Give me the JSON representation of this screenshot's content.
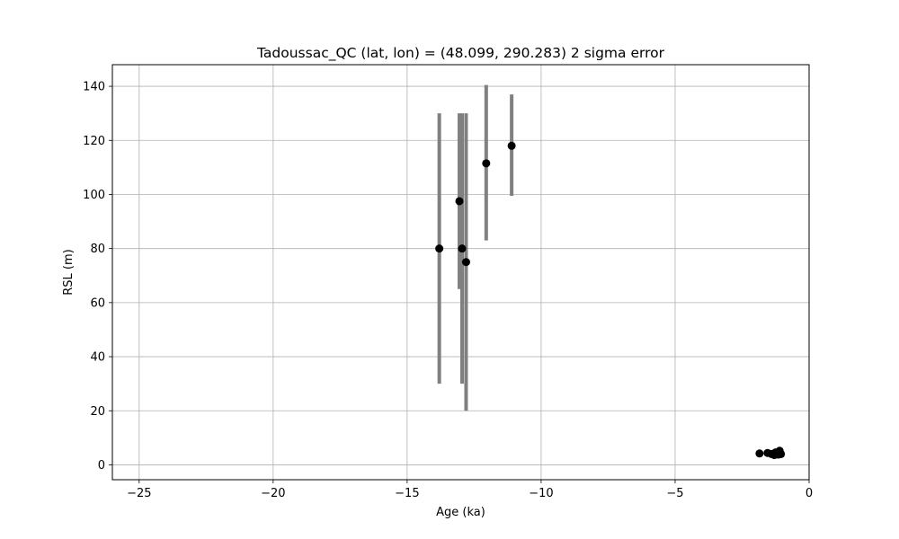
{
  "chart_data": {
    "type": "scatter",
    "title": "Tadoussac_QC (lat, lon) = (48.099, 290.283)  2 sigma error",
    "xlabel": "Age (ka)",
    "ylabel": "RSL (m)",
    "xlim": [
      -26,
      0
    ],
    "ylim": [
      -5.5,
      148
    ],
    "xticks": [
      -25,
      -20,
      -15,
      -10,
      -5,
      0
    ],
    "xtick_labels": [
      "−25",
      "−20",
      "−15",
      "−10",
      "−5",
      "0"
    ],
    "yticks": [
      0,
      20,
      40,
      60,
      80,
      100,
      120,
      140
    ],
    "ytick_labels": [
      "0",
      "20",
      "40",
      "60",
      "80",
      "100",
      "120",
      "140"
    ],
    "grid": true,
    "error_bar_color": "#808080",
    "marker_color": "#000000",
    "series": [
      {
        "points": [
          {
            "x": -13.8,
            "y": 80,
            "ylo": 30,
            "yhi": 130
          },
          {
            "x": -13.05,
            "y": 97.5,
            "ylo": 65,
            "yhi": 130
          },
          {
            "x": -12.95,
            "y": 80,
            "ylo": 30,
            "yhi": 130
          },
          {
            "x": -12.8,
            "y": 75,
            "ylo": 20,
            "yhi": 130
          },
          {
            "x": -12.05,
            "y": 111.5,
            "ylo": 83,
            "yhi": 140.5
          },
          {
            "x": -11.1,
            "y": 118,
            "ylo": 99.5,
            "yhi": 137
          },
          {
            "x": -1.85,
            "y": 4.2,
            "ylo": 3.0,
            "yhi": 5.4
          },
          {
            "x": -1.55,
            "y": 4.4,
            "ylo": 3.2,
            "yhi": 5.6
          },
          {
            "x": -1.4,
            "y": 4.0,
            "ylo": 2.8,
            "yhi": 5.2
          },
          {
            "x": -1.3,
            "y": 3.6,
            "ylo": 2.4,
            "yhi": 4.8
          },
          {
            "x": -1.25,
            "y": 4.6,
            "ylo": 3.4,
            "yhi": 5.8
          },
          {
            "x": -1.2,
            "y": 4.2,
            "ylo": 3.0,
            "yhi": 5.4
          },
          {
            "x": -1.15,
            "y": 3.8,
            "ylo": 2.6,
            "yhi": 5.0
          },
          {
            "x": -1.1,
            "y": 5.2,
            "ylo": 4.0,
            "yhi": 6.4
          },
          {
            "x": -1.05,
            "y": 4.0,
            "ylo": 2.8,
            "yhi": 5.2
          }
        ]
      }
    ]
  }
}
